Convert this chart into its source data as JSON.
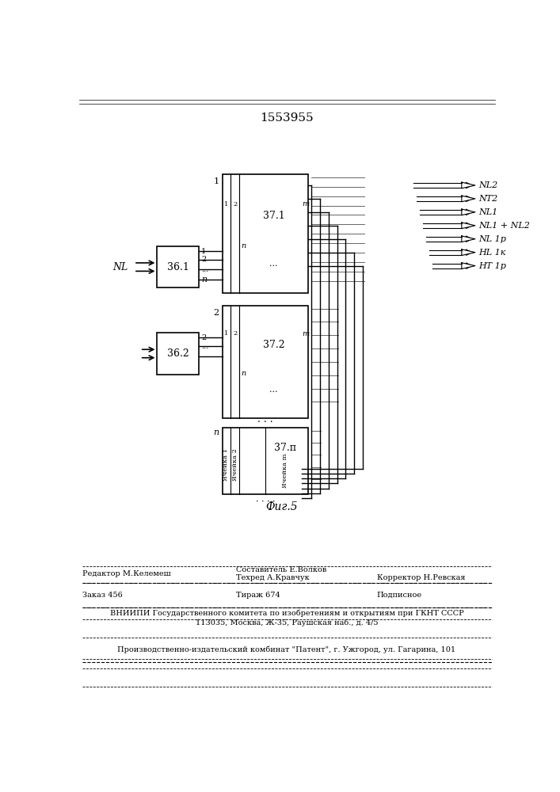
{
  "title": "1553955",
  "fig_caption": "Фиг.5",
  "bg_color": "#ffffff",
  "output_labels": [
    "NL2",
    "NT2",
    "NL1",
    "NL1 + NL2",
    "NL 1р",
    "HL 1к",
    "HT 1р"
  ],
  "footer": {
    "line1_left": "Редактор М.Келемеш",
    "line1_center_top": "Составитель Е.Волков",
    "line1_center": "Техред А.Кравчук",
    "line1_right": "Корректор Н.Ревская",
    "line2_left": "Заказ 456",
    "line2_center": "Тираж 674",
    "line2_right": "Подписное",
    "line3": "ВНИИПИ Государственного комитета по изобретениям и открытиям при ГКНТ СССР",
    "line4": "113035, Москва, Ж-35, Раушская наб., д. 4/5",
    "line5": "Производственно-издательский комбинат \"Патент\", г. Ужгород, ул. Гагарина, 101"
  }
}
